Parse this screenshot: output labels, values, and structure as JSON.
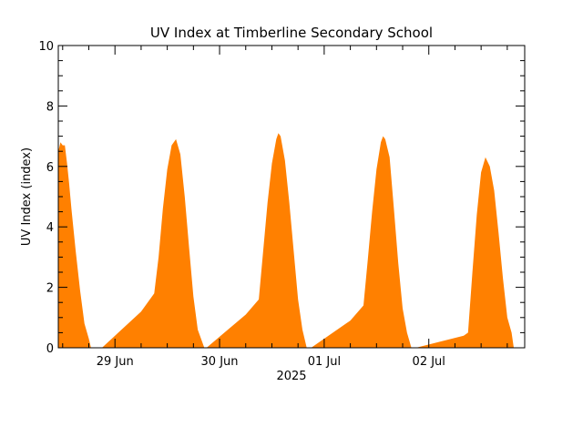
{
  "chart_data": {
    "type": "area",
    "title": "UV Index at Timberline Secondary School",
    "ylabel": "UV Index (index)",
    "xlabel": "2025",
    "ylim": [
      0,
      10
    ],
    "xlim": [
      "2025-06-28 11:00",
      "2025-07-02 22:00"
    ],
    "yticks": [
      "0",
      "2",
      "4",
      "6",
      "8",
      "10"
    ],
    "xticks": [
      {
        "label": "29 Jun",
        "date": "2025-06-29 00:00"
      },
      {
        "label": "30 Jun",
        "date": "2025-06-30 00:00"
      },
      {
        "label": "01 Jul",
        "date": "2025-07-01 00:00"
      },
      {
        "label": "02 Jul",
        "date": "2025-07-02 00:00"
      }
    ],
    "fill_color": "#ff8000",
    "grid": false,
    "series": [
      {
        "points": [
          [
            "2025-06-28 11:00",
            6.5
          ],
          [
            "2025-06-28 11:30",
            6.8
          ],
          [
            "2025-06-28 12:00",
            6.7
          ],
          [
            "2025-06-28 12:30",
            6.7
          ],
          [
            "2025-06-28 13:00",
            6.1
          ],
          [
            "2025-06-28 13:30",
            5.4
          ],
          [
            "2025-06-28 14:00",
            4.6
          ],
          [
            "2025-06-28 15:00",
            3.2
          ],
          [
            "2025-06-28 16:00",
            1.9
          ],
          [
            "2025-06-28 17:00",
            0.8
          ],
          [
            "2025-06-28 18:00",
            0.3
          ],
          [
            "2025-06-28 18:30",
            0.0
          ],
          [
            "2025-06-28 21:00",
            0.0
          ],
          [
            "2025-06-29 06:00",
            1.2
          ],
          [
            "2025-06-29 09:00",
            1.8
          ],
          [
            "2025-06-29 10:00",
            3.0
          ],
          [
            "2025-06-29 11:00",
            4.6
          ],
          [
            "2025-06-29 12:00",
            5.9
          ],
          [
            "2025-06-29 13:00",
            6.7
          ],
          [
            "2025-06-29 14:00",
            6.9
          ],
          [
            "2025-06-29 15:00",
            6.4
          ],
          [
            "2025-06-29 16:00",
            5.0
          ],
          [
            "2025-06-29 17:00",
            3.3
          ],
          [
            "2025-06-29 18:00",
            1.7
          ],
          [
            "2025-06-29 19:00",
            0.6
          ],
          [
            "2025-06-29 20:00",
            0.2
          ],
          [
            "2025-06-29 20:30",
            0.0
          ],
          [
            "2025-06-29 21:00",
            0.0
          ],
          [
            "2025-06-30 06:00",
            1.1
          ],
          [
            "2025-06-30 09:00",
            1.6
          ],
          [
            "2025-06-30 10:00",
            3.2
          ],
          [
            "2025-06-30 11:00",
            4.8
          ],
          [
            "2025-06-30 12:00",
            6.1
          ],
          [
            "2025-06-30 13:00",
            6.9
          ],
          [
            "2025-06-30 13:30",
            7.1
          ],
          [
            "2025-06-30 14:00",
            7.0
          ],
          [
            "2025-06-30 15:00",
            6.2
          ],
          [
            "2025-06-30 16:00",
            4.8
          ],
          [
            "2025-06-30 17:00",
            3.2
          ],
          [
            "2025-06-30 18:00",
            1.6
          ],
          [
            "2025-06-30 19:00",
            0.6
          ],
          [
            "2025-06-30 20:00",
            0.0
          ],
          [
            "2025-06-30 21:00",
            0.0
          ],
          [
            "2025-07-01 06:00",
            0.9
          ],
          [
            "2025-07-01 09:00",
            1.4
          ],
          [
            "2025-07-01 10:00",
            2.9
          ],
          [
            "2025-07-01 11:00",
            4.5
          ],
          [
            "2025-07-01 12:00",
            5.9
          ],
          [
            "2025-07-01 13:00",
            6.8
          ],
          [
            "2025-07-01 13:30",
            7.0
          ],
          [
            "2025-07-01 14:00",
            6.9
          ],
          [
            "2025-07-01 15:00",
            6.3
          ],
          [
            "2025-07-01 16:00",
            4.6
          ],
          [
            "2025-07-01 17:00",
            2.8
          ],
          [
            "2025-07-01 18:00",
            1.3
          ],
          [
            "2025-07-01 19:00",
            0.5
          ],
          [
            "2025-07-01 20:00",
            0.0
          ],
          [
            "2025-07-01 21:00",
            0.0
          ],
          [
            "2025-07-02 08:00",
            0.4
          ],
          [
            "2025-07-02 09:00",
            0.5
          ],
          [
            "2025-07-02 10:00",
            2.5
          ],
          [
            "2025-07-02 11:00",
            4.4
          ],
          [
            "2025-07-02 12:00",
            5.8
          ],
          [
            "2025-07-02 13:00",
            6.3
          ],
          [
            "2025-07-02 14:00",
            6.0
          ],
          [
            "2025-07-02 15:00",
            5.2
          ],
          [
            "2025-07-02 16:00",
            3.8
          ],
          [
            "2025-07-02 17:00",
            2.3
          ],
          [
            "2025-07-02 18:00",
            1.0
          ],
          [
            "2025-07-02 19:00",
            0.5
          ],
          [
            "2025-07-02 19:30",
            0.0
          ]
        ]
      }
    ]
  }
}
